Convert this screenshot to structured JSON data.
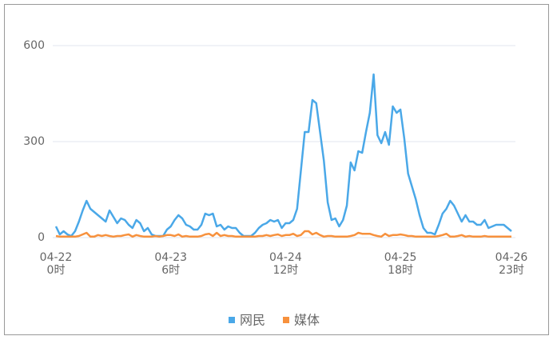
{
  "chart_data": {
    "type": "line",
    "categories": [
      "04-22\n0时",
      null,
      null,
      null,
      null,
      null,
      null,
      null,
      null,
      null,
      null,
      null,
      null,
      null,
      null,
      null,
      null,
      null,
      null,
      null,
      null,
      null,
      null,
      null,
      null,
      null,
      null,
      null,
      null,
      null,
      "04-23\n6时",
      null,
      null,
      null,
      null,
      null,
      null,
      null,
      null,
      null,
      null,
      null,
      null,
      null,
      null,
      null,
      null,
      null,
      null,
      null,
      null,
      null,
      null,
      null,
      null,
      null,
      null,
      null,
      null,
      null,
      "04-24\n12时",
      null,
      null,
      null,
      null,
      null,
      null,
      null,
      null,
      null,
      null,
      null,
      null,
      null,
      null,
      null,
      null,
      null,
      null,
      null,
      null,
      null,
      null,
      null,
      null,
      null,
      null,
      null,
      null,
      null,
      "04-25\n18时",
      null,
      null,
      null,
      null,
      null,
      null,
      null,
      null,
      null,
      null,
      null,
      null,
      null,
      null,
      null,
      null,
      null,
      null,
      null,
      null,
      null,
      null,
      null,
      null,
      null,
      null,
      null,
      null,
      "04-26\n23时"
    ],
    "series": [
      {
        "name": "网民",
        "color": "#4aa8e8",
        "values": [
          35,
          10,
          20,
          10,
          5,
          20,
          50,
          85,
          115,
          90,
          80,
          70,
          60,
          50,
          85,
          65,
          45,
          60,
          55,
          40,
          30,
          55,
          45,
          20,
          30,
          10,
          5,
          5,
          5,
          25,
          35,
          55,
          70,
          60,
          40,
          35,
          25,
          25,
          40,
          75,
          70,
          75,
          35,
          40,
          25,
          35,
          30,
          30,
          15,
          5,
          5,
          5,
          15,
          30,
          40,
          45,
          55,
          50,
          55,
          30,
          45,
          45,
          55,
          90,
          210,
          330,
          330,
          430,
          420,
          330,
          240,
          110,
          55,
          60,
          35,
          55,
          100,
          235,
          210,
          270,
          265,
          330,
          390,
          510,
          320,
          295,
          330,
          290,
          410,
          390,
          400,
          310,
          200,
          160,
          120,
          70,
          30,
          15,
          15,
          10,
          40,
          75,
          90,
          115,
          100,
          75,
          50,
          70,
          50,
          50,
          40,
          40,
          55,
          30,
          35,
          40,
          40,
          40,
          30,
          20
        ]
      },
      {
        "name": "媒体",
        "color": "#f7913d",
        "values": [
          5,
          3,
          3,
          3,
          3,
          3,
          5,
          10,
          15,
          3,
          3,
          8,
          5,
          8,
          5,
          3,
          5,
          5,
          8,
          10,
          3,
          8,
          5,
          3,
          3,
          3,
          5,
          3,
          5,
          8,
          8,
          5,
          10,
          3,
          5,
          3,
          3,
          3,
          5,
          10,
          12,
          5,
          15,
          5,
          8,
          5,
          5,
          3,
          3,
          3,
          3,
          3,
          3,
          5,
          5,
          8,
          5,
          8,
          10,
          5,
          8,
          8,
          12,
          5,
          8,
          20,
          20,
          10,
          15,
          8,
          3,
          5,
          5,
          3,
          3,
          3,
          3,
          5,
          8,
          15,
          12,
          12,
          12,
          8,
          5,
          3,
          12,
          5,
          8,
          8,
          10,
          8,
          5,
          5,
          3,
          3,
          3,
          3,
          3,
          3,
          5,
          8,
          12,
          3,
          3,
          5,
          8,
          3,
          5,
          3,
          3,
          3,
          5,
          3,
          3,
          3,
          3,
          3,
          3,
          3
        ]
      }
    ],
    "ylim": [
      0,
      600
    ],
    "yticks": [
      0,
      300,
      600
    ],
    "grid": true
  }
}
